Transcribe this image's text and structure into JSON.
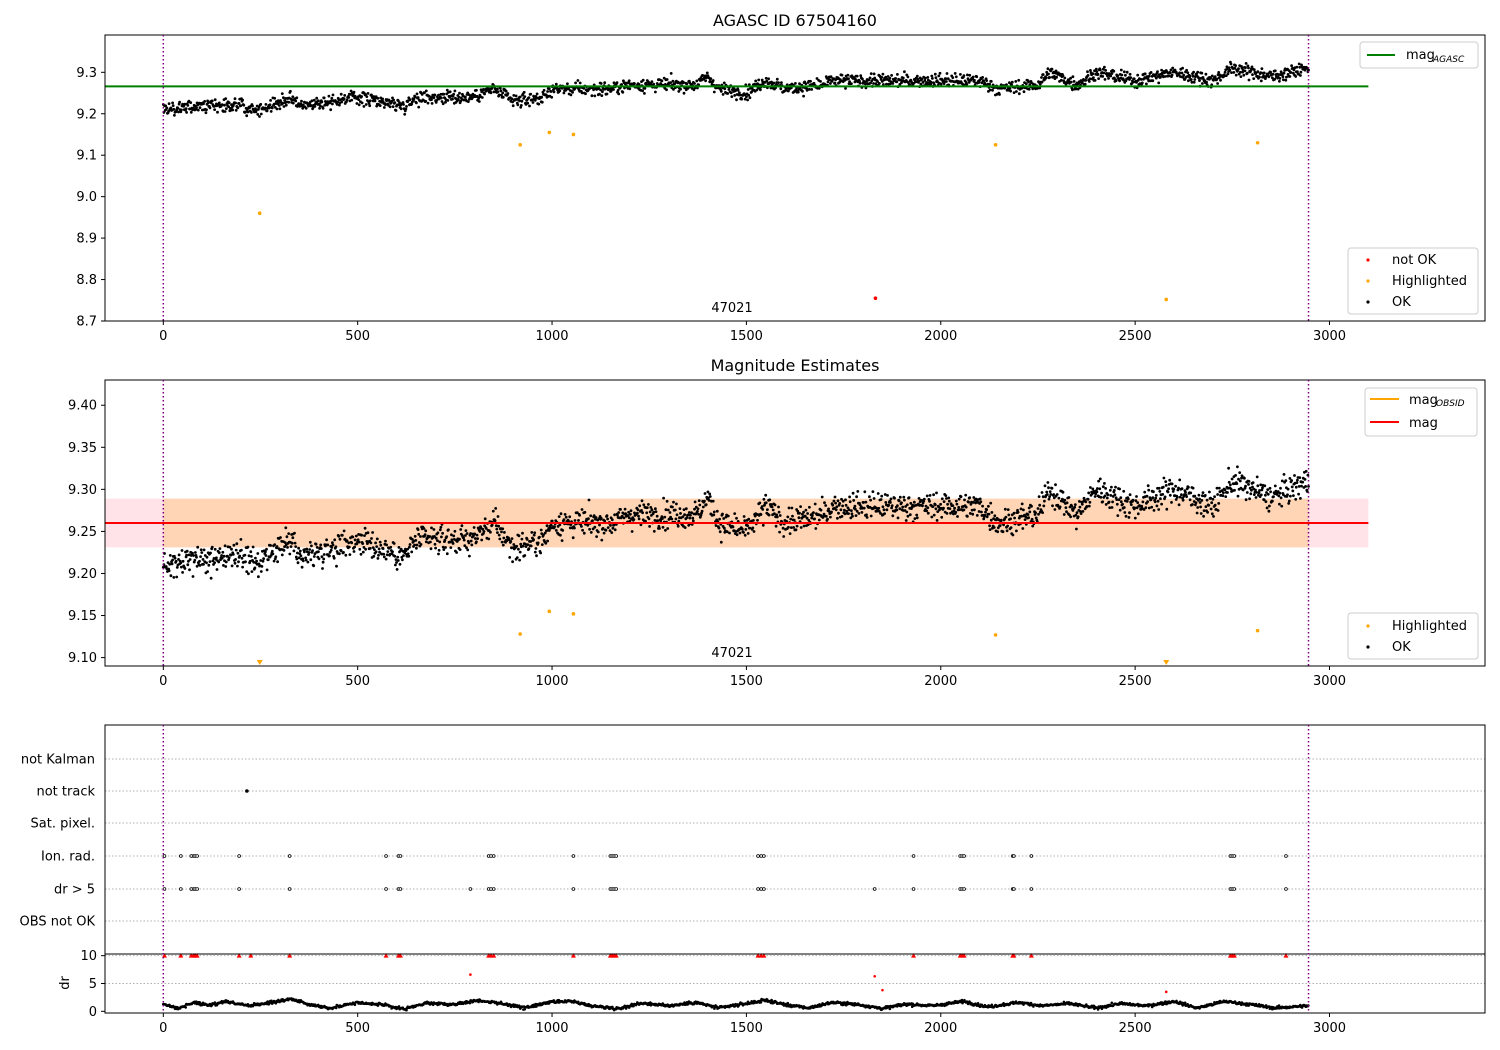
{
  "chart_data": [
    {
      "type": "scatter",
      "title": "AGASC ID 67504160",
      "xlim": [
        -150,
        3400
      ],
      "ylim": [
        8.7,
        9.39
      ],
      "yticks": [
        "9.3",
        "9.2",
        "9.1",
        "9.0",
        "8.9",
        "8.8",
        "8.7"
      ],
      "xticks": [
        "0",
        "500",
        "1000",
        "1500",
        "2000",
        "2500",
        "3000"
      ],
      "grid": false,
      "obs_bounds": [
        0,
        2946
      ],
      "obs_label": "47021",
      "reference_lines": [
        {
          "name": "mag_AGASC",
          "name_main": "mag",
          "name_sub": "AGASC",
          "value": 9.266,
          "x_range": [
            -150,
            3100
          ],
          "color": "#008000"
        }
      ],
      "legend_upper": {
        "position": "upper right",
        "entries": [
          {
            "name_main": "mag",
            "name_sub": "AGASC",
            "color": "#008000"
          }
        ]
      },
      "legend_lower": {
        "position": "lower right",
        "entries": [
          {
            "name": "not OK",
            "color": "#ff0000"
          },
          {
            "name": "Highlighted",
            "color": "#ffa500"
          },
          {
            "name": "OK",
            "color": "#000000"
          }
        ]
      },
      "series": [
        {
          "name": "OK",
          "color": "#000000",
          "x_range": [
            0,
            2946
          ],
          "trend": [
            [
              0,
              9.21
            ],
            [
              150,
              9.22
            ],
            [
              200,
              9.22
            ],
            [
              250,
              9.21
            ],
            [
              330,
              9.24
            ],
            [
              350,
              9.22
            ],
            [
              500,
              9.24
            ],
            [
              620,
              9.22
            ],
            [
              650,
              9.24
            ],
            [
              790,
              9.24
            ],
            [
              850,
              9.26
            ],
            [
              900,
              9.23
            ],
            [
              980,
              9.24
            ],
            [
              1000,
              9.26
            ],
            [
              1150,
              9.26
            ],
            [
              1200,
              9.27
            ],
            [
              1370,
              9.27
            ],
            [
              1400,
              9.29
            ],
            [
              1430,
              9.26
            ],
            [
              1500,
              9.25
            ],
            [
              1550,
              9.28
            ],
            [
              1600,
              9.26
            ],
            [
              1700,
              9.27
            ],
            [
              1720,
              9.28
            ],
            [
              1900,
              9.28
            ],
            [
              2000,
              9.28
            ],
            [
              2100,
              9.28
            ],
            [
              2150,
              9.26
            ],
            [
              2250,
              9.27
            ],
            [
              2280,
              9.3
            ],
            [
              2350,
              9.27
            ],
            [
              2400,
              9.3
            ],
            [
              2500,
              9.28
            ],
            [
              2600,
              9.3
            ],
            [
              2700,
              9.28
            ],
            [
              2750,
              9.31
            ],
            [
              2850,
              9.29
            ],
            [
              2946,
              9.31
            ]
          ]
        },
        {
          "name": "Highlighted",
          "color": "#ffa500",
          "points": [
            [
              248,
              8.96
            ],
            [
              918,
              9.125
            ],
            [
              993,
              9.155
            ],
            [
              1055,
              9.15
            ],
            [
              2141,
              9.125
            ],
            [
              2580,
              8.752
            ],
            [
              2815,
              9.13
            ]
          ]
        },
        {
          "name": "not OK",
          "color": "#ff0000",
          "points": [
            [
              1832,
              8.755
            ]
          ]
        }
      ]
    },
    {
      "type": "scatter",
      "title": "Magnitude Estimates",
      "xlim": [
        -150,
        3400
      ],
      "ylim": [
        9.09,
        9.43
      ],
      "yticks": [
        "9.40",
        "9.35",
        "9.30",
        "9.25",
        "9.20",
        "9.15",
        "9.10"
      ],
      "xticks": [
        "0",
        "500",
        "1000",
        "1500",
        "2000",
        "2500",
        "3000"
      ],
      "grid": false,
      "obs_bounds": [
        0,
        2946
      ],
      "obs_label": "47021",
      "band": {
        "color": "#ffc0cb",
        "y_range": [
          9.231,
          9.289
        ],
        "x_range": [
          -150,
          3100
        ]
      },
      "band_obsid": {
        "color": "#ffa500",
        "y_range": [
          9.231,
          9.289
        ],
        "x_range": [
          0,
          2946
        ]
      },
      "reference_lines": [
        {
          "name": "mag_OBSID",
          "name_main": "mag",
          "name_sub": "OBSID",
          "value": 9.26,
          "x_range": [
            0,
            2946
          ],
          "color": "#ffa500"
        },
        {
          "name": "mag",
          "name_main": "mag",
          "name_sub": "",
          "value": 9.26,
          "x_range": [
            -150,
            3100
          ],
          "color": "#ff0000"
        }
      ],
      "legend_upper": {
        "position": "upper right",
        "entries": [
          {
            "name_main": "mag",
            "name_sub": "OBSID",
            "color": "#ffa500"
          },
          {
            "name_main": "mag",
            "name_sub": "",
            "color": "#ff0000"
          }
        ]
      },
      "legend_lower": {
        "position": "lower right",
        "entries": [
          {
            "name": "Highlighted",
            "color": "#ffa500"
          },
          {
            "name": "OK",
            "color": "#000000"
          }
        ]
      },
      "series": [
        {
          "name": "OK",
          "color": "#000000",
          "x_range": [
            0,
            2946
          ],
          "trend": [
            [
              0,
              9.21
            ],
            [
              150,
              9.22
            ],
            [
              200,
              9.22
            ],
            [
              250,
              9.21
            ],
            [
              330,
              9.24
            ],
            [
              350,
              9.22
            ],
            [
              500,
              9.24
            ],
            [
              620,
              9.22
            ],
            [
              650,
              9.24
            ],
            [
              790,
              9.24
            ],
            [
              850,
              9.26
            ],
            [
              900,
              9.23
            ],
            [
              980,
              9.24
            ],
            [
              1000,
              9.26
            ],
            [
              1150,
              9.26
            ],
            [
              1200,
              9.27
            ],
            [
              1370,
              9.27
            ],
            [
              1400,
              9.29
            ],
            [
              1430,
              9.26
            ],
            [
              1500,
              9.25
            ],
            [
              1550,
              9.28
            ],
            [
              1600,
              9.26
            ],
            [
              1700,
              9.27
            ],
            [
              1720,
              9.28
            ],
            [
              1900,
              9.28
            ],
            [
              2000,
              9.28
            ],
            [
              2100,
              9.28
            ],
            [
              2150,
              9.26
            ],
            [
              2250,
              9.27
            ],
            [
              2280,
              9.3
            ],
            [
              2350,
              9.27
            ],
            [
              2400,
              9.3
            ],
            [
              2500,
              9.28
            ],
            [
              2600,
              9.3
            ],
            [
              2700,
              9.28
            ],
            [
              2750,
              9.31
            ],
            [
              2850,
              9.29
            ],
            [
              2946,
              9.31
            ]
          ]
        },
        {
          "name": "Highlighted",
          "color": "#ffa500",
          "points": [
            [
              918,
              9.128
            ],
            [
              993,
              9.155
            ],
            [
              1055,
              9.152
            ],
            [
              2141,
              9.127
            ],
            [
              2815,
              9.132
            ]
          ]
        },
        {
          "name": "Highlighted (out of range)",
          "color": "#ffa500",
          "points": [
            [
              248,
              9.093
            ],
            [
              2580,
              9.093
            ]
          ]
        }
      ]
    },
    {
      "type": "scatter",
      "title": "",
      "xlim": [
        -150,
        3400
      ],
      "xticks": [
        "0",
        "500",
        "1000",
        "1500",
        "2000",
        "2500",
        "3000"
      ],
      "obs_bounds": [
        0,
        2946
      ],
      "flag_rows": [
        "not Kalman",
        "not track",
        "Sat. pixel.",
        "Ion. rad.",
        "dr > 5",
        "OBS not OK"
      ],
      "flags": {
        "not Kalman": [],
        "not track": [
          215
        ],
        "Sat. pixel.": [],
        "Ion. rad.": [
          3,
          45,
          72,
          78,
          82,
          87,
          195,
          325,
          573,
          605,
          610,
          837,
          843,
          850,
          1055,
          1150,
          1155,
          1160,
          1165,
          1530,
          1538,
          1545,
          1930,
          2050,
          2055,
          2060,
          2185,
          2188,
          2233,
          2745,
          2750,
          2755,
          2888
        ],
        "dr > 5": [
          3,
          45,
          72,
          78,
          82,
          87,
          195,
          325,
          573,
          605,
          610,
          790,
          837,
          843,
          850,
          1055,
          1150,
          1155,
          1160,
          1165,
          1530,
          1538,
          1545,
          1830,
          1930,
          2050,
          2055,
          2060,
          2185,
          2188,
          2233,
          2745,
          2750,
          2755,
          2888
        ],
        "OBS not OK": []
      },
      "dr": {
        "ylabel": "dr",
        "yticks": [
          "10",
          "5",
          "0"
        ],
        "ylim": [
          -0.3,
          10.3
        ],
        "baseline": [
          [
            0,
            1.2
          ],
          [
            40,
            0.6
          ],
          [
            80,
            1.6
          ],
          [
            120,
            1.1
          ],
          [
            160,
            1.8
          ],
          [
            220,
            1.0
          ],
          [
            280,
            1.6
          ],
          [
            330,
            2.2
          ],
          [
            380,
            1.2
          ],
          [
            430,
            0.6
          ],
          [
            500,
            1.6
          ],
          [
            560,
            1.2
          ],
          [
            620,
            0.4
          ],
          [
            680,
            1.5
          ],
          [
            740,
            1.2
          ],
          [
            810,
            2.0
          ],
          [
            870,
            1.4
          ],
          [
            930,
            0.6
          ],
          [
            990,
            1.6
          ],
          [
            1050,
            1.8
          ],
          [
            1100,
            1.0
          ],
          [
            1170,
            0.5
          ],
          [
            1230,
            1.5
          ],
          [
            1300,
            1.0
          ],
          [
            1370,
            1.6
          ],
          [
            1430,
            0.6
          ],
          [
            1500,
            1.4
          ],
          [
            1550,
            2.0
          ],
          [
            1600,
            1.2
          ],
          [
            1660,
            0.6
          ],
          [
            1720,
            1.6
          ],
          [
            1790,
            1.2
          ],
          [
            1850,
            0.5
          ],
          [
            1910,
            1.3
          ],
          [
            1980,
            1.0
          ],
          [
            2060,
            1.8
          ],
          [
            2120,
            0.8
          ],
          [
            2200,
            1.6
          ],
          [
            2260,
            1.0
          ],
          [
            2330,
            1.4
          ],
          [
            2400,
            0.6
          ],
          [
            2460,
            1.4
          ],
          [
            2530,
            1.0
          ],
          [
            2600,
            1.8
          ],
          [
            2660,
            0.6
          ],
          [
            2730,
            1.8
          ],
          [
            2800,
            1.2
          ],
          [
            2860,
            0.6
          ],
          [
            2946,
            1.0
          ]
        ],
        "outliers": [
          [
            790,
            6.6
          ],
          [
            1830,
            6.3
          ],
          [
            1850,
            3.8
          ],
          [
            2580,
            3.5
          ]
        ],
        "clipped": [
          3,
          45,
          72,
          78,
          82,
          87,
          195,
          225,
          325,
          573,
          605,
          610,
          837,
          843,
          850,
          1055,
          1150,
          1155,
          1160,
          1165,
          1530,
          1538,
          1545,
          1930,
          2050,
          2055,
          2060,
          2185,
          2188,
          2233,
          2745,
          2750,
          2755,
          2888
        ]
      }
    }
  ]
}
